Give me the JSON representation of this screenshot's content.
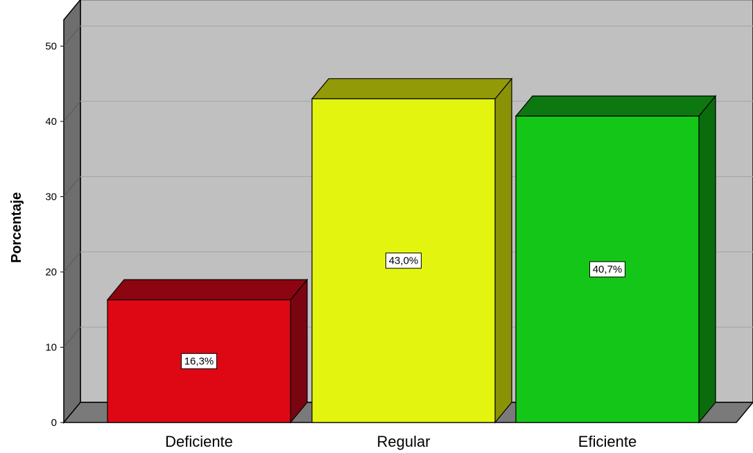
{
  "chart_data": {
    "type": "bar",
    "three_d": true,
    "categories": [
      "Deficiente",
      "Regular",
      "Eficiente"
    ],
    "values": [
      16.3,
      43.0,
      40.7
    ],
    "data_labels": [
      "16,3%",
      "43,0%",
      "40,7%"
    ],
    "title": "",
    "xlabel": "",
    "ylabel": "Porcentaje",
    "ylim": [
      0,
      50
    ],
    "yticks": [
      0,
      10,
      20,
      30,
      40,
      50
    ],
    "ytick_labels": [
      "0",
      "10",
      "20",
      "30",
      "40",
      "50"
    ],
    "grid": true,
    "legend": "none"
  },
  "colors": {
    "plot_background": "#c0c0c0",
    "floor": "#7a7a7a",
    "left_wall": "#6e6e6e",
    "grid_line": "#a8a8a8",
    "bars": [
      {
        "front": "#dd0814",
        "top": "#8c0510",
        "side": "#7a0510"
      },
      {
        "front": "#e3f40e",
        "top": "#939a08",
        "side": "#8a9206"
      },
      {
        "front": "#14c618",
        "top": "#0d780f",
        "side": "#0b6c0d"
      }
    ]
  }
}
